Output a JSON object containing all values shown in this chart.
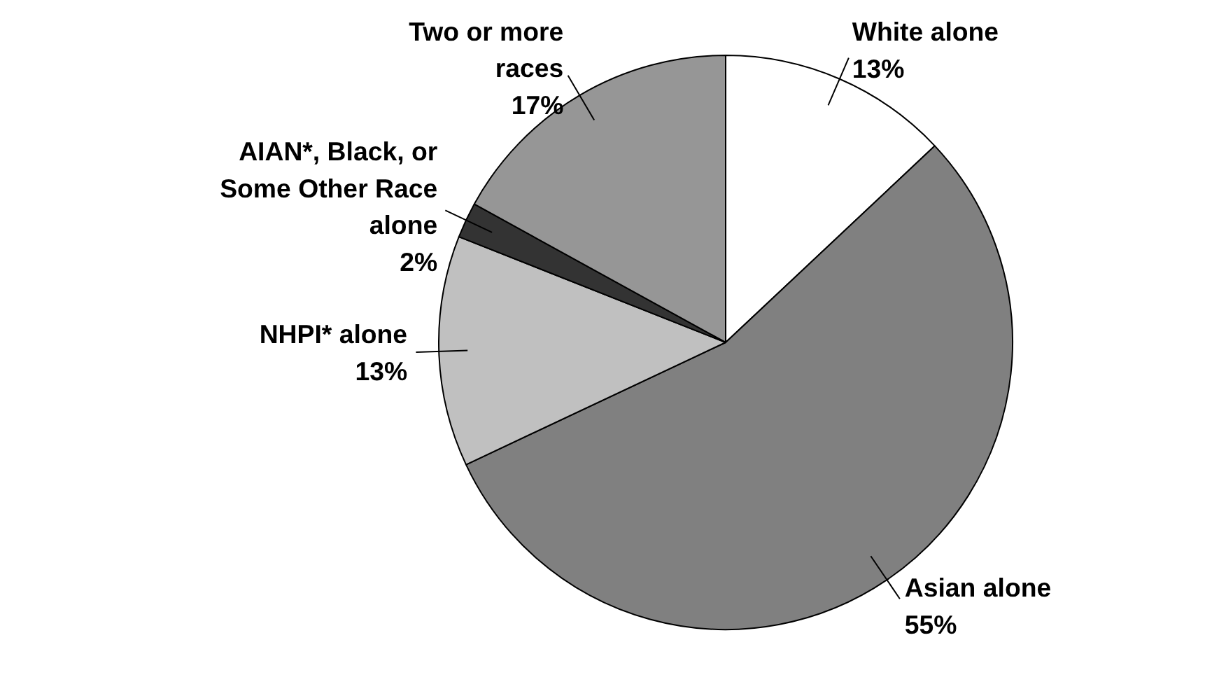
{
  "chart_data": {
    "type": "pie",
    "categories": [
      "White alone",
      "Asian alone",
      "NHPI* alone",
      "AIAN*, Black, or Some Other Race alone",
      "Two or more races"
    ],
    "values": [
      13,
      55,
      13,
      2,
      17
    ],
    "value_labels": [
      "13%",
      "55%",
      "13%",
      "2%",
      "17%"
    ],
    "colors": [
      "#ffffff",
      "#808080",
      "#c0c0c0",
      "#333333",
      "#969696"
    ],
    "legend": false
  }
}
